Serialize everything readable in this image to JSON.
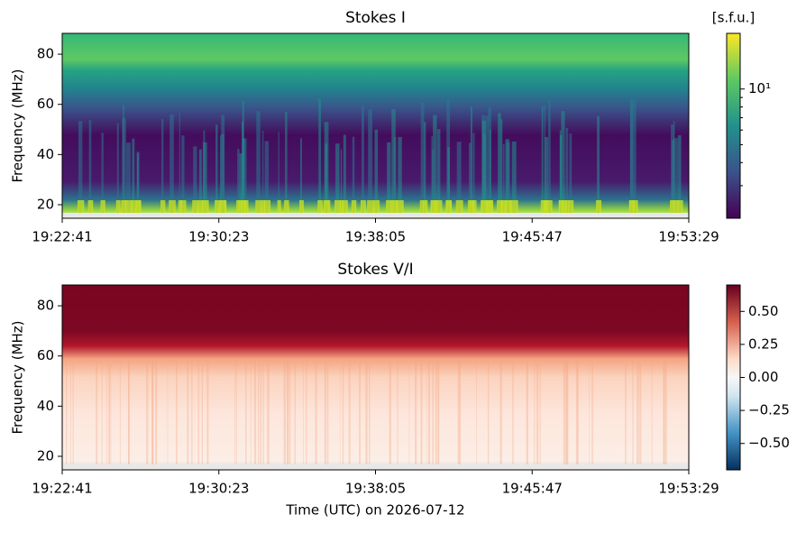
{
  "chart_data": [
    {
      "type": "heatmap",
      "title": "Stokes I",
      "ylabel": "Frequency (MHz)",
      "ylim": [
        14.6,
        88.3
      ],
      "yticks": [
        20,
        40,
        60,
        80
      ],
      "xticks": [
        "19:22:41",
        "19:30:23",
        "19:38:05",
        "19:45:47",
        "19:53:29"
      ],
      "colormap": "viridis",
      "colorbar_label": "[s.f.u.]",
      "colorbar_scale": "log",
      "clim": [
        2,
        20
      ],
      "colorbar_ticks": [
        {
          "value": 10,
          "label": "10¹"
        }
      ]
    },
    {
      "type": "heatmap",
      "title": "Stokes V/I",
      "ylabel": "Frequency (MHz)",
      "xlabel": "Time (UTC) on 2026-07-12",
      "ylim": [
        14.6,
        88.3
      ],
      "yticks": [
        20,
        40,
        60,
        80
      ],
      "xticks": [
        "19:22:41",
        "19:30:23",
        "19:38:05",
        "19:45:47",
        "19:53:29"
      ],
      "colormap": "RdBu_r",
      "colorbar_scale": "linear",
      "clim": [
        -0.7,
        0.7
      ],
      "colorbar_ticks": [
        {
          "value": -0.5,
          "label": "−0.50"
        },
        {
          "value": -0.25,
          "label": "−0.25"
        },
        {
          "value": 0,
          "label": "0.00"
        },
        0.25,
        {
          "value": 0.5,
          "label": "0.50"
        }
      ]
    }
  ]
}
